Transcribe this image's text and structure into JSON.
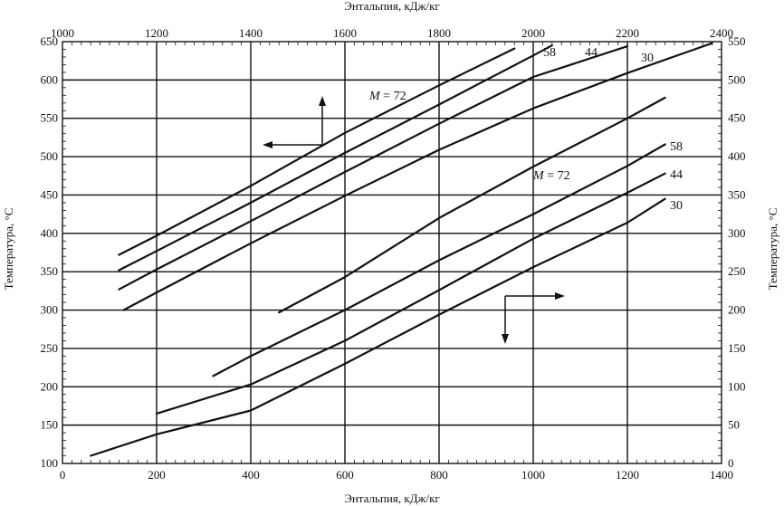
{
  "chart_data": {
    "type": "line",
    "bottom_axis": {
      "label": "Энтальпия, кДж/кг",
      "range": [
        0,
        1400
      ],
      "ticks": [
        0,
        200,
        400,
        600,
        800,
        1000,
        1200,
        1400
      ]
    },
    "top_axis": {
      "label": "Энтальпия, кДж/кг",
      "range": [
        1000,
        2400
      ],
      "ticks": [
        1000,
        1200,
        1400,
        1600,
        1800,
        2000,
        2200,
        2400
      ]
    },
    "left_axis": {
      "label": "Температура, °С",
      "range": [
        100,
        650
      ],
      "ticks": [
        100,
        150,
        200,
        250,
        300,
        350,
        400,
        450,
        500,
        550,
        600,
        650
      ]
    },
    "right_axis": {
      "label": "Температура, °С",
      "range": [
        0,
        550
      ],
      "ticks": [
        0,
        50,
        100,
        150,
        200,
        250,
        300,
        350,
        400,
        450,
        500,
        550
      ]
    },
    "grid": true,
    "series_upper": {
      "axes": "top-left",
      "series": [
        {
          "name": "M = 72",
          "points": [
            [
              1120,
              372
            ],
            [
              1200,
              397
            ],
            [
              1400,
              462
            ],
            [
              1600,
              531
            ],
            [
              1800,
              593
            ],
            [
              1960,
              641
            ]
          ]
        },
        {
          "name": "58",
          "points": [
            [
              1120,
              352
            ],
            [
              1200,
              377
            ],
            [
              1400,
              440
            ],
            [
              1600,
              505
            ],
            [
              1800,
              568
            ],
            [
              2000,
              632
            ],
            [
              2040,
              645
            ]
          ]
        },
        {
          "name": "44",
          "points": [
            [
              1120,
              327
            ],
            [
              1200,
              353
            ],
            [
              1400,
              416
            ],
            [
              1600,
              480
            ],
            [
              1800,
              543
            ],
            [
              2000,
              604
            ],
            [
              2200,
              644
            ]
          ]
        },
        {
          "name": "30",
          "points": [
            [
              1130,
              300
            ],
            [
              1200,
              323
            ],
            [
              1400,
              387
            ],
            [
              1600,
              449
            ],
            [
              1800,
              509
            ],
            [
              2000,
              563
            ],
            [
              2200,
              609
            ],
            [
              2380,
              648
            ]
          ]
        }
      ]
    },
    "series_lower": {
      "axes": "bottom-right",
      "series": [
        {
          "name": "M = 72",
          "points": [
            [
              460,
              197
            ],
            [
              600,
              243
            ],
            [
              800,
              320
            ],
            [
              1000,
              387
            ],
            [
              1200,
              450
            ],
            [
              1280,
              477
            ]
          ]
        },
        {
          "name": "58",
          "points": [
            [
              320,
              114
            ],
            [
              400,
              140
            ],
            [
              600,
              200
            ],
            [
              800,
              265
            ],
            [
              1000,
              325
            ],
            [
              1200,
              388
            ],
            [
              1280,
              416
            ]
          ]
        },
        {
          "name": "44",
          "points": [
            [
              200,
              65
            ],
            [
              400,
              103
            ],
            [
              600,
              160
            ],
            [
              800,
              226
            ],
            [
              1000,
              293
            ],
            [
              1200,
              353
            ],
            [
              1280,
              378
            ]
          ]
        },
        {
          "name": "30",
          "points": [
            [
              60,
              10
            ],
            [
              200,
              38
            ],
            [
              400,
              69
            ],
            [
              600,
              130
            ],
            [
              800,
              194
            ],
            [
              1000,
              256
            ],
            [
              1200,
              314
            ],
            [
              1280,
              345
            ]
          ]
        }
      ]
    },
    "annotations": {
      "upper_labels": [
        "M = 72",
        "58",
        "44",
        "30"
      ],
      "lower_labels": [
        "M = 72",
        "58",
        "44",
        "30"
      ],
      "upper_arrows": "up and left: upper curves use top and left axes",
      "lower_arrows": "right and down: lower curves use bottom and right axes"
    }
  }
}
